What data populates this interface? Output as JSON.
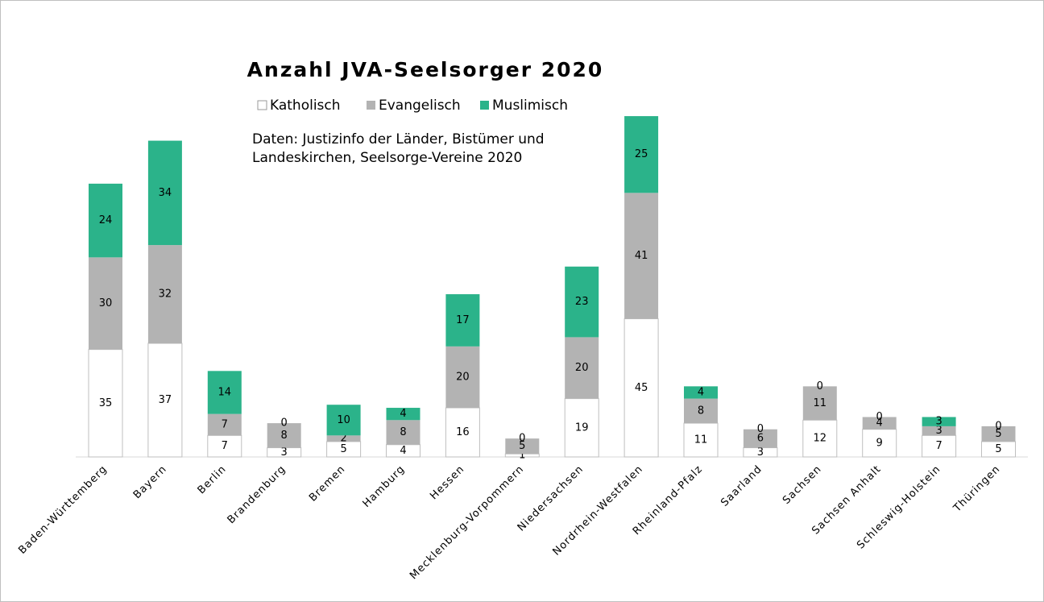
{
  "chart_data": {
    "type": "stacked_bar",
    "title": "Anzahl JVA-Seelsorger 2020",
    "annotations": [
      "Daten: Justizinfo der Länder, Bistümer und",
      "Landeskirchen, Seelsorge-Vereine 2020"
    ],
    "categories": [
      "Baden-Württemberg",
      "Bayern",
      "Berlin",
      "Brandenburg",
      "Bremen",
      "Hamburg",
      "Hessen",
      "Mecklenburg-Vorpommern",
      "Niedersachsen",
      "Nordrhein-Westfalen",
      "Rheinland-Pfalz",
      "Saarland",
      "Sachsen",
      "Sachsen Anhalt",
      "Schleswig-Holstein",
      "Thüringen"
    ],
    "series": [
      {
        "name": "Katholisch",
        "color": "#ffffff",
        "values": [
          35,
          37,
          7,
          3,
          5,
          4,
          16,
          1,
          19,
          45,
          11,
          3,
          12,
          9,
          7,
          5
        ]
      },
      {
        "name": "Evangelisch",
        "color": "#b3b3b3",
        "values": [
          30,
          32,
          7,
          8,
          2,
          8,
          20,
          5,
          20,
          41,
          8,
          6,
          11,
          4,
          3,
          5
        ]
      },
      {
        "name": "Muslimisch",
        "color": "#2bb38a",
        "values": [
          24,
          34,
          14,
          0,
          10,
          4,
          17,
          0,
          23,
          25,
          4,
          0,
          0,
          0,
          3,
          0
        ]
      }
    ],
    "legend": "top"
  }
}
